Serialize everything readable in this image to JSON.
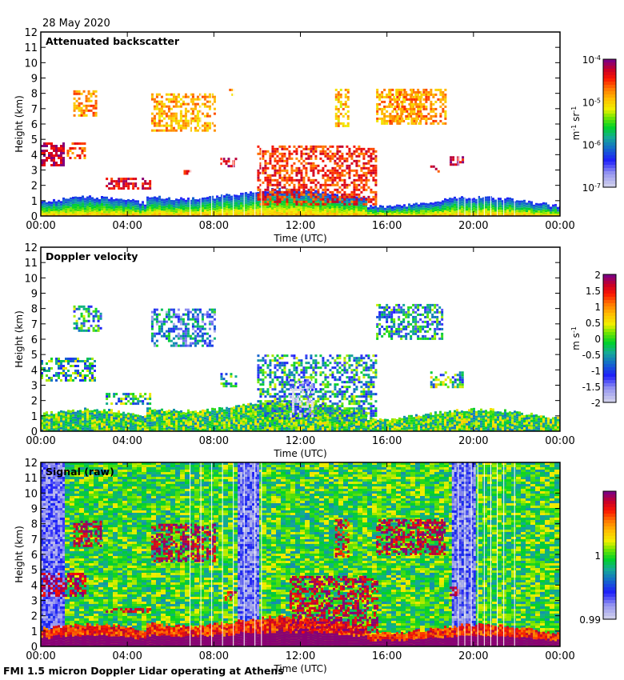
{
  "date_label": "28 May 2020",
  "footer": "FMI 1.5 micron Doppler Lidar operating at Athens",
  "chart_data": [
    {
      "type": "heatmap",
      "id": "backscatter",
      "title": "Attenuated backscatter",
      "xlabel": "Time (UTC)",
      "ylabel": "Height (km)",
      "xlim": [
        0,
        24
      ],
      "ylim": [
        0,
        12
      ],
      "x_ticks": [
        "00:00",
        "04:00",
        "08:00",
        "12:00",
        "16:00",
        "20:00",
        "00:00"
      ],
      "y_ticks": [
        "0",
        "1",
        "2",
        "3",
        "4",
        "5",
        "6",
        "7",
        "8",
        "9",
        "10",
        "11",
        "12"
      ],
      "colorbar": {
        "unit_base": "m",
        "unit_exp1": "-1",
        "unit_mid": " sr",
        "unit_exp2": "-1",
        "scale": "log",
        "range": [
          1e-07,
          0.0001
        ],
        "ticks": [
          {
            "base": "10",
            "exp": "-4"
          },
          {
            "base": "10",
            "exp": "-5"
          },
          {
            "base": "10",
            "exp": "-6"
          },
          {
            "base": "10",
            "exp": "-7"
          }
        ]
      },
      "features": [
        {
          "kind": "boundary_layer",
          "t0": 0,
          "t1": 24,
          "top_km": 0.8,
          "value": 0.45
        },
        {
          "kind": "cloud",
          "t0": 0,
          "t1": 1.1,
          "h0": 3.3,
          "h1": 4.8,
          "value": 0.95
        },
        {
          "kind": "cloud",
          "t0": 1.2,
          "t1": 2.0,
          "h0": 3.8,
          "h1": 4.8,
          "value": 0.8
        },
        {
          "kind": "cloud",
          "t0": 1.5,
          "t1": 2.6,
          "h0": 6.6,
          "h1": 8.2,
          "value": 0.75
        },
        {
          "kind": "cloud",
          "t0": 3.0,
          "t1": 5.0,
          "h0": 1.8,
          "h1": 2.5,
          "value": 0.9
        },
        {
          "kind": "cloud",
          "t0": 5.1,
          "t1": 8.0,
          "h0": 5.6,
          "h1": 8.0,
          "value": 0.72
        },
        {
          "kind": "cloud",
          "t0": 6.6,
          "t1": 7.0,
          "h0": 2.8,
          "h1": 3.0,
          "value": 0.85
        },
        {
          "kind": "cloud",
          "t0": 8.3,
          "t1": 9.0,
          "h0": 3.2,
          "h1": 3.8,
          "value": 0.9
        },
        {
          "kind": "cloud",
          "t0": 8.7,
          "t1": 8.9,
          "h0": 7.9,
          "h1": 8.3,
          "value": 0.72
        },
        {
          "kind": "cloud",
          "t0": 10.0,
          "t1": 15.5,
          "h0": 0.8,
          "h1": 4.6,
          "value": 0.85
        },
        {
          "kind": "cloud",
          "t0": 13.6,
          "t1": 14.2,
          "h0": 5.8,
          "h1": 8.3,
          "value": 0.7
        },
        {
          "kind": "cloud",
          "t0": 15.5,
          "t1": 17.6,
          "h0": 6.0,
          "h1": 8.3,
          "value": 0.72
        },
        {
          "kind": "cloud",
          "t0": 16.1,
          "t1": 18.7,
          "h0": 6.1,
          "h1": 8.3,
          "value": 0.75
        },
        {
          "kind": "cloud",
          "t0": 18.0,
          "t1": 18.4,
          "h0": 2.9,
          "h1": 3.3,
          "value": 0.88
        },
        {
          "kind": "cloud",
          "t0": 18.9,
          "t1": 19.5,
          "h0": 3.3,
          "h1": 3.9,
          "value": 0.92
        }
      ]
    },
    {
      "type": "heatmap",
      "id": "velocity",
      "title": "Doppler velocity",
      "xlabel": "Time (UTC)",
      "ylabel": "Height (km)",
      "xlim": [
        0,
        24
      ],
      "ylim": [
        0,
        12
      ],
      "x_ticks": [
        "00:00",
        "04:00",
        "08:00",
        "12:00",
        "16:00",
        "20:00",
        "00:00"
      ],
      "y_ticks": [
        "0",
        "1",
        "2",
        "3",
        "4",
        "5",
        "6",
        "7",
        "8",
        "9",
        "10",
        "11",
        "12"
      ],
      "colorbar": {
        "unit_base": "m",
        "unit_mid": " s",
        "unit_exp2": "-1",
        "scale": "linear",
        "range": [
          -2,
          2
        ],
        "ticks": [
          "2",
          "1.5",
          "1",
          "0.5",
          "0",
          "-0.5",
          "-1",
          "-1.5",
          "-2"
        ]
      },
      "features": [
        {
          "kind": "boundary_layer",
          "t0": 0,
          "t1": 24,
          "top_km": 1.0,
          "value": 0.5
        },
        {
          "kind": "cloud",
          "t0": 0,
          "t1": 2.5,
          "h0": 3.3,
          "h1": 4.8,
          "value": 0.42
        },
        {
          "kind": "cloud",
          "t0": 1.5,
          "t1": 2.8,
          "h0": 6.6,
          "h1": 8.2,
          "value": 0.4
        },
        {
          "kind": "cloud",
          "t0": 3.0,
          "t1": 5.0,
          "h0": 1.8,
          "h1": 2.5,
          "value": 0.42
        },
        {
          "kind": "cloud",
          "t0": 5.1,
          "t1": 8.0,
          "h0": 5.6,
          "h1": 8.0,
          "value": 0.3
        },
        {
          "kind": "cloud",
          "t0": 8.3,
          "t1": 9.0,
          "h0": 2.9,
          "h1": 3.8,
          "value": 0.45
        },
        {
          "kind": "cloud",
          "t0": 10.0,
          "t1": 15.5,
          "h0": 0.8,
          "h1": 5.0,
          "value": 0.4
        },
        {
          "kind": "cloud",
          "t0": 11.5,
          "t1": 12.5,
          "h0": 1.0,
          "h1": 3.4,
          "value": 0.05
        },
        {
          "kind": "cloud",
          "t0": 15.5,
          "t1": 18.6,
          "h0": 6.0,
          "h1": 8.3,
          "value": 0.38
        },
        {
          "kind": "cloud",
          "t0": 18.0,
          "t1": 19.5,
          "h0": 2.9,
          "h1": 3.9,
          "value": 0.45
        }
      ]
    },
    {
      "type": "heatmap",
      "id": "signal",
      "title": "Signal (raw)",
      "xlabel": "Time (UTC)",
      "ylabel": "Height (km)",
      "xlim": [
        0,
        24
      ],
      "ylim": [
        0,
        12
      ],
      "x_ticks": [
        "00:00",
        "04:00",
        "08:00",
        "12:00",
        "16:00",
        "20:00",
        "00:00"
      ],
      "y_ticks": [
        "0",
        "1",
        "2",
        "3",
        "4",
        "5",
        "6",
        "7",
        "8",
        "9",
        "10",
        "11",
        "12"
      ],
      "colorbar": {
        "scale": "linear",
        "range": [
          0.99,
          1.01
        ],
        "ticks": [
          "1",
          "0.99"
        ]
      },
      "background_value": 0.5,
      "low_signal_periods": [
        [
          0,
          1.0
        ],
        [
          9.1,
          10.0
        ],
        [
          19.0,
          20.0
        ]
      ],
      "features": [
        {
          "kind": "boundary_layer",
          "t0": 0,
          "t1": 24,
          "top_km": 1.0,
          "value": 0.98
        },
        {
          "kind": "cloud",
          "t0": 0,
          "t1": 2.0,
          "h0": 3.3,
          "h1": 4.8,
          "value": 0.95
        },
        {
          "kind": "cloud",
          "t0": 1.5,
          "t1": 2.8,
          "h0": 6.6,
          "h1": 8.2,
          "value": 0.95
        },
        {
          "kind": "cloud",
          "t0": 3.0,
          "t1": 5.0,
          "h0": 2.2,
          "h1": 2.5,
          "value": 0.9
        },
        {
          "kind": "cloud",
          "t0": 5.1,
          "t1": 8.0,
          "h0": 5.6,
          "h1": 8.0,
          "value": 0.95
        },
        {
          "kind": "cloud",
          "t0": 8.5,
          "t1": 9.0,
          "h0": 3.0,
          "h1": 3.6,
          "value": 0.9
        },
        {
          "kind": "cloud",
          "t0": 11.5,
          "t1": 15.5,
          "h0": 0.9,
          "h1": 4.6,
          "value": 0.95
        },
        {
          "kind": "cloud",
          "t0": 13.6,
          "t1": 14.2,
          "h0": 5.8,
          "h1": 8.3,
          "value": 0.9
        },
        {
          "kind": "cloud",
          "t0": 15.5,
          "t1": 18.7,
          "h0": 6.0,
          "h1": 8.3,
          "value": 0.95
        },
        {
          "kind": "cloud",
          "t0": 18.9,
          "t1": 19.3,
          "h0": 3.3,
          "h1": 3.9,
          "value": 0.98
        }
      ]
    }
  ]
}
